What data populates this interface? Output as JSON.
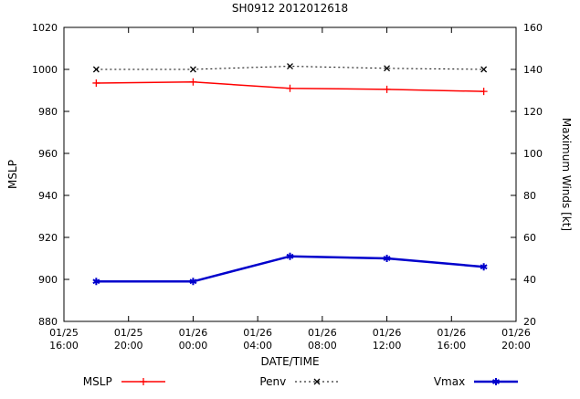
{
  "chart_data": {
    "type": "line",
    "title": "SH0912 2012012618",
    "xlabel": "DATE/TIME",
    "ylabel_left": "MSLP",
    "ylabel_right": "Maximum Winds [kt]",
    "ylim_left": [
      880,
      1020
    ],
    "ylim_right": [
      20,
      160
    ],
    "yticks_left": [
      1020,
      1000,
      980,
      960,
      940,
      920,
      900,
      880
    ],
    "yticks_right": [
      160,
      140,
      120,
      100,
      80,
      60,
      40,
      20
    ],
    "x_range_hours": [
      0,
      28
    ],
    "xticks": [
      {
        "hour": 0,
        "date": "01/25",
        "time": "16:00"
      },
      {
        "hour": 4,
        "date": "01/25",
        "time": "20:00"
      },
      {
        "hour": 8,
        "date": "01/26",
        "time": "00:00"
      },
      {
        "hour": 12,
        "date": "01/26",
        "time": "04:00"
      },
      {
        "hour": 16,
        "date": "01/26",
        "time": "08:00"
      },
      {
        "hour": 20,
        "date": "01/26",
        "time": "12:00"
      },
      {
        "hour": 24,
        "date": "01/26",
        "time": "16:00"
      },
      {
        "hour": 28,
        "date": "01/26",
        "time": "20:00"
      }
    ],
    "grid": false,
    "legend_position": "bottom",
    "series": [
      {
        "name": "MSLP",
        "axis": "left",
        "color": "#ff0000",
        "marker": "plus",
        "line": "solid",
        "x_labels": [
          "01/25 18:00",
          "01/26 00:00",
          "01/26 06:00",
          "01/26 12:00",
          "01/26 18:00"
        ],
        "points": [
          {
            "hour": 2,
            "value": 993.5
          },
          {
            "hour": 8,
            "value": 994
          },
          {
            "hour": 14,
            "value": 991
          },
          {
            "hour": 20,
            "value": 990.5
          },
          {
            "hour": 26,
            "value": 989.5
          }
        ]
      },
      {
        "name": "Penv",
        "axis": "left",
        "color": "#000000",
        "marker": "cross",
        "line": "dotted",
        "x_labels": [
          "01/25 18:00",
          "01/26 00:00",
          "01/26 06:00",
          "01/26 12:00",
          "01/26 18:00"
        ],
        "points": [
          {
            "hour": 2,
            "value": 1000
          },
          {
            "hour": 8,
            "value": 1000
          },
          {
            "hour": 14,
            "value": 1001.5
          },
          {
            "hour": 20,
            "value": 1000.5
          },
          {
            "hour": 26,
            "value": 1000
          }
        ]
      },
      {
        "name": "Vmax",
        "axis": "right",
        "color": "#0000cc",
        "marker": "star",
        "line": "solid",
        "x_labels": [
          "01/25 18:00",
          "01/26 00:00",
          "01/26 06:00",
          "01/26 12:00",
          "01/26 18:00"
        ],
        "points": [
          {
            "hour": 2,
            "value": 39
          },
          {
            "hour": 8,
            "value": 39
          },
          {
            "hour": 14,
            "value": 51
          },
          {
            "hour": 20,
            "value": 50
          },
          {
            "hour": 26,
            "value": 46
          }
        ]
      }
    ]
  }
}
